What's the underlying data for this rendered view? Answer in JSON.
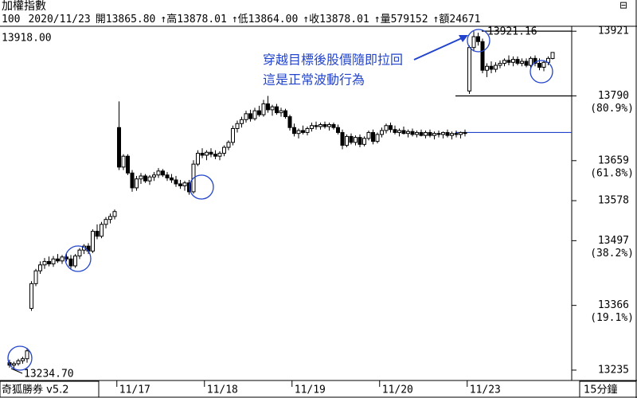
{
  "chart_data": {
    "type": "candlestick",
    "title": "加權指數",
    "info": [
      "100",
      "2020/11/23",
      "開13865.80",
      "↑高13878.01",
      "↑低13864.00",
      "↑收13878.01",
      "↑量579152",
      "↑額24671"
    ],
    "cursor_label": "13918.00",
    "high_label": "13921.16",
    "low_label": "13234.70",
    "annotation": [
      "穿越目標後股價隨即拉回",
      "這是正常波動行為"
    ],
    "software": "奇狐勝券  v5.2",
    "period": "15分鐘",
    "ylim": [
      13214,
      13931
    ],
    "yticks": [
      13235,
      13366,
      13497,
      13578,
      13659,
      13790,
      13921
    ],
    "fib_labels": [
      {
        "value": 13790,
        "label": "(80.9%)"
      },
      {
        "value": 13659,
        "label": "(61.8%)"
      },
      {
        "value": 13497,
        "label": "(38.2%)"
      },
      {
        "value": 13366,
        "label": "(19.1%)"
      }
    ],
    "ref_lines": [
      {
        "value": 13921.16,
        "color": "#000000"
      },
      {
        "value": 13790,
        "color": "#000000"
      },
      {
        "value": 13716,
        "color": "#2244cc"
      }
    ],
    "up_color": "#ffffff",
    "down_color": "#000000",
    "categories": [
      null,
      null,
      null,
      null,
      null,
      null,
      null,
      null,
      null,
      null,
      null,
      null,
      null,
      null,
      null,
      null,
      null,
      null,
      null,
      null,
      null,
      null,
      null,
      null,
      null,
      "11/17",
      null,
      null,
      null,
      null,
      null,
      null,
      null,
      null,
      null,
      null,
      null,
      null,
      null,
      null,
      null,
      null,
      null,
      null,
      null,
      "11/18",
      null,
      null,
      null,
      null,
      null,
      null,
      null,
      null,
      null,
      null,
      null,
      null,
      null,
      null,
      null,
      null,
      null,
      null,
      null,
      "11/19",
      null,
      null,
      null,
      null,
      null,
      null,
      null,
      null,
      null,
      null,
      null,
      null,
      null,
      null,
      null,
      null,
      null,
      null,
      null,
      "11/20",
      null,
      null,
      null,
      null,
      null,
      null,
      null,
      null,
      null,
      null,
      null,
      null,
      null,
      null,
      null,
      null,
      null,
      null,
      null,
      "11/23",
      null,
      null,
      null,
      null,
      null,
      null,
      null,
      null,
      null,
      null,
      null,
      null,
      null,
      null,
      null,
      null,
      null,
      null,
      null
    ],
    "open": [
      13250,
      13245,
      13248,
      13254,
      13258,
      13360,
      13410,
      13436,
      13448,
      13455,
      13450,
      13460,
      13456,
      13464,
      13460,
      13446,
      13466,
      13478,
      13486,
      13476,
      13516,
      13506,
      13530,
      13540,
      13546,
      13726,
      13646,
      13668,
      13634,
      13604,
      13622,
      13628,
      13618,
      13626,
      13630,
      13638,
      13630,
      13624,
      13620,
      13612,
      13608,
      13614,
      13596,
      13652,
      13674,
      13670,
      13676,
      13672,
      13668,
      13674,
      13686,
      13696,
      13724,
      13734,
      13742,
      13754,
      13744,
      13760,
      13752,
      13774,
      13762,
      13768,
      13756,
      13760,
      13748,
      13726,
      13714,
      13720,
      13716,
      13724,
      13730,
      13728,
      13732,
      13728,
      13732,
      13726,
      13716,
      13690,
      13708,
      13696,
      13706,
      13692,
      13704,
      13716,
      13698,
      13712,
      13720,
      13730,
      13722,
      13716,
      13720,
      13714,
      13718,
      13712,
      13716,
      13710,
      13716,
      13710,
      13714,
      13712,
      13716,
      13710,
      13714,
      13712,
      13716,
      13800,
      13888,
      13910,
      13900,
      13842,
      13850,
      13844,
      13852,
      13856,
      13862,
      13858,
      13864,
      13856,
      13860,
      13852,
      13866,
      13856,
      13848,
      13858,
      13865.8
    ],
    "high": [
      13256,
      13252,
      13258,
      13262,
      13280,
      13415,
      13440,
      13455,
      13462,
      13465,
      13466,
      13470,
      13468,
      13472,
      13468,
      13470,
      13482,
      13490,
      13492,
      13520,
      13530,
      13535,
      13545,
      13552,
      13560,
      13779,
      13672,
      13672,
      13640,
      13628,
      13634,
      13632,
      13630,
      13636,
      13644,
      13642,
      13636,
      13632,
      13628,
      13620,
      13618,
      13620,
      13660,
      13680,
      13684,
      13680,
      13684,
      13680,
      13678,
      13690,
      13700,
      13730,
      13740,
      13748,
      13760,
      13762,
      13766,
      13770,
      13782,
      13790,
      13772,
      13774,
      13766,
      13764,
      13752,
      13734,
      13724,
      13730,
      13728,
      13736,
      13738,
      13736,
      13738,
      13736,
      13736,
      13732,
      13722,
      13712,
      13714,
      13710,
      13712,
      13708,
      13720,
      13722,
      13716,
      13726,
      13734,
      13736,
      13730,
      13724,
      13728,
      13722,
      13724,
      13720,
      13722,
      13720,
      13722,
      13718,
      13720,
      13718,
      13722,
      13718,
      13720,
      13718,
      13722,
      13892,
      13921.16,
      13918,
      13906,
      13856,
      13860,
      13858,
      13862,
      13866,
      13872,
      13870,
      13870,
      13866,
      13866,
      13870,
      13872,
      13866,
      13862,
      13870,
      13878.01
    ],
    "low": [
      13240,
      13235,
      13244,
      13248,
      13250,
      13355,
      13405,
      13430,
      13440,
      13445,
      13444,
      13452,
      13450,
      13455,
      13440,
      13442,
      13460,
      13470,
      13470,
      13472,
      13500,
      13502,
      13522,
      13532,
      13540,
      13640,
      13640,
      13630,
      13596,
      13598,
      13612,
      13614,
      13610,
      13618,
      13624,
      13626,
      13618,
      13614,
      13606,
      13602,
      13598,
      13590,
      13592,
      13648,
      13664,
      13660,
      13666,
      13662,
      13660,
      13668,
      13680,
      13690,
      13716,
      13726,
      13736,
      13738,
      13740,
      13748,
      13748,
      13756,
      13750,
      13752,
      13748,
      13744,
      13720,
      13708,
      13704,
      13712,
      13710,
      13718,
      13722,
      13722,
      13724,
      13720,
      13722,
      13712,
      13682,
      13686,
      13692,
      13690,
      13686,
      13688,
      13700,
      13692,
      13694,
      13706,
      13714,
      13716,
      13712,
      13708,
      13712,
      13706,
      13708,
      13706,
      13708,
      13704,
      13706,
      13702,
      13706,
      13704,
      13706,
      13702,
      13706,
      13704,
      13708,
      13794,
      13880,
      13892,
      13836,
      13828,
      13836,
      13838,
      13846,
      13850,
      13852,
      13850,
      13852,
      13850,
      13848,
      13846,
      13850,
      13842,
      13840,
      13852,
      13864.0
    ],
    "close": [
      13245,
      13248,
      13254,
      13258,
      13274,
      13410,
      13436,
      13448,
      13455,
      13450,
      13460,
      13456,
      13464,
      13460,
      13446,
      13466,
      13478,
      13486,
      13476,
      13516,
      13506,
      13530,
      13540,
      13546,
      13556,
      13646,
      13668,
      13634,
      13604,
      13622,
      13628,
      13618,
      13626,
      13630,
      13638,
      13630,
      13624,
      13620,
      13612,
      13608,
      13614,
      13596,
      13652,
      13674,
      13670,
      13676,
      13672,
      13668,
      13674,
      13686,
      13696,
      13724,
      13734,
      13742,
      13754,
      13744,
      13760,
      13752,
      13774,
      13762,
      13768,
      13756,
      13760,
      13748,
      13726,
      13714,
      13720,
      13716,
      13724,
      13730,
      13728,
      13732,
      13728,
      13732,
      13726,
      13716,
      13690,
      13708,
      13696,
      13706,
      13692,
      13704,
      13716,
      13698,
      13712,
      13720,
      13730,
      13722,
      13716,
      13720,
      13714,
      13718,
      13712,
      13716,
      13710,
      13716,
      13710,
      13714,
      13712,
      13716,
      13710,
      13714,
      13712,
      13716,
      13714,
      13888,
      13910,
      13900,
      13842,
      13850,
      13844,
      13852,
      13856,
      13862,
      13858,
      13864,
      13856,
      13860,
      13852,
      13866,
      13856,
      13848,
      13858,
      13866,
      13878.01
    ]
  }
}
